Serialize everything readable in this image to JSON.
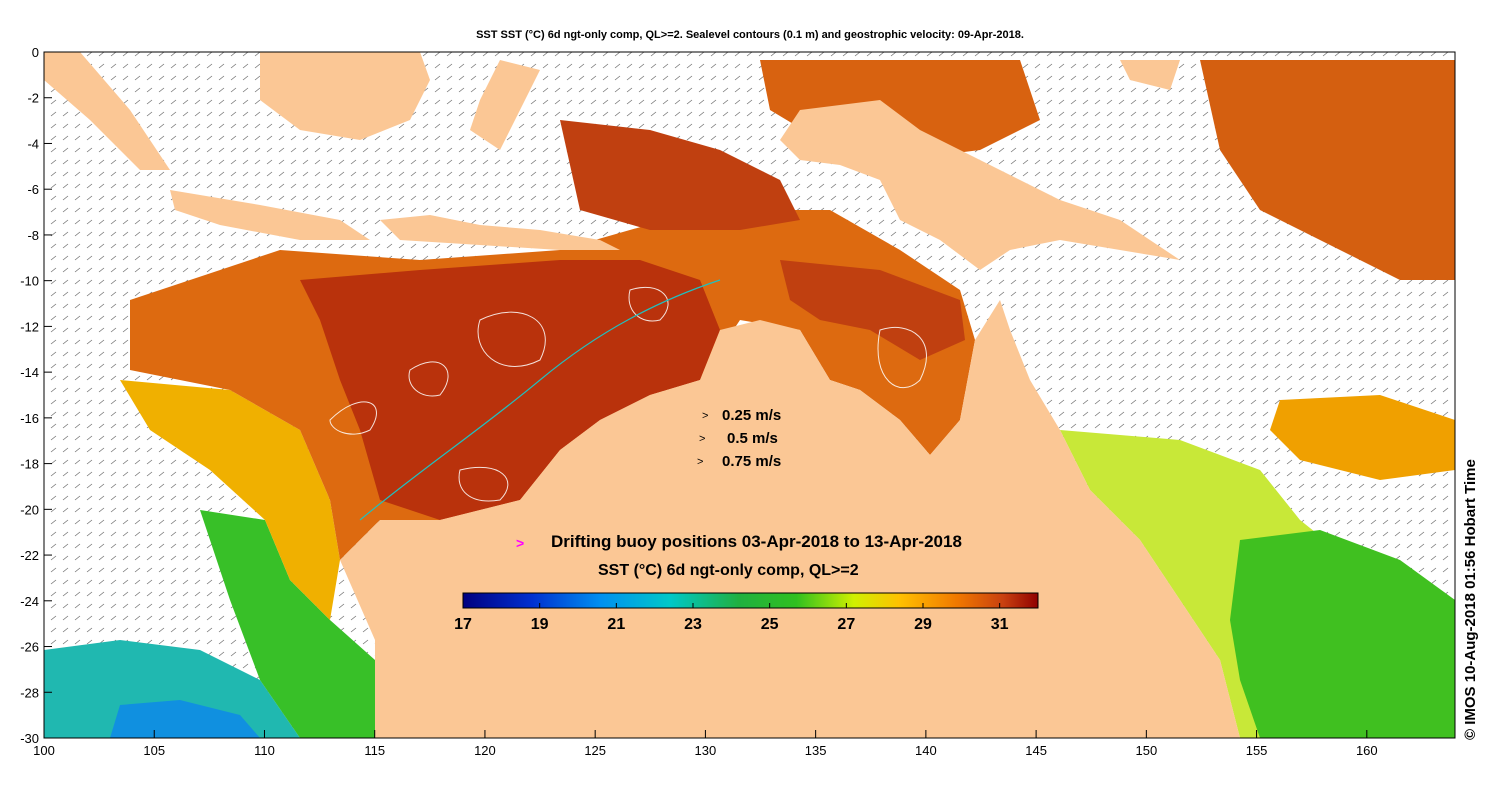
{
  "title": "SST SST (°C) 6d ngt-only comp, QL>=2. Sealevel contours (0.1 m) and geostrophic velocity: 09-Apr-2018.",
  "axes": {
    "x_ticks": [
      "100",
      "105",
      "110",
      "115",
      "120",
      "125",
      "130",
      "135",
      "140",
      "145",
      "150",
      "155",
      "160"
    ],
    "y_ticks": [
      "0",
      "-2",
      "-4",
      "-6",
      "-8",
      "-10",
      "-12",
      "-14",
      "-16",
      "-18",
      "-20",
      "-22",
      "-24",
      "-26",
      "-28",
      "-30"
    ],
    "lon_range": [
      100,
      164
    ],
    "lat_range": [
      -30,
      0
    ]
  },
  "legend": {
    "velocity_scale": [
      "0.25 m/s",
      "0.5 m/s",
      "0.75 m/s"
    ],
    "velocity_arrow": ">",
    "buoy_marker": ">",
    "buoy_text": "Drifting buoy positions 03-Apr-2018 to 13-Apr-2018",
    "colorbar_title": "SST (°C) 6d ngt-only comp, QL>=2",
    "colorbar_ticks": [
      "17",
      "19",
      "21",
      "23",
      "25",
      "27",
      "29",
      "31"
    ],
    "colorbar_range": [
      17,
      32
    ]
  },
  "credit": "© IMOS 10-Aug-2018 01:56 Hobart Time",
  "colors": {
    "land": "#fbc795",
    "sst_hot": "#b9320c",
    "sst_warm": "#dd6a10",
    "sst_mid": "#f2a000",
    "sst_green": "#40c020",
    "sst_cool": "#20b0c0",
    "buoy_marker": "#ff00ff",
    "coast_line": "#20c0c0"
  }
}
